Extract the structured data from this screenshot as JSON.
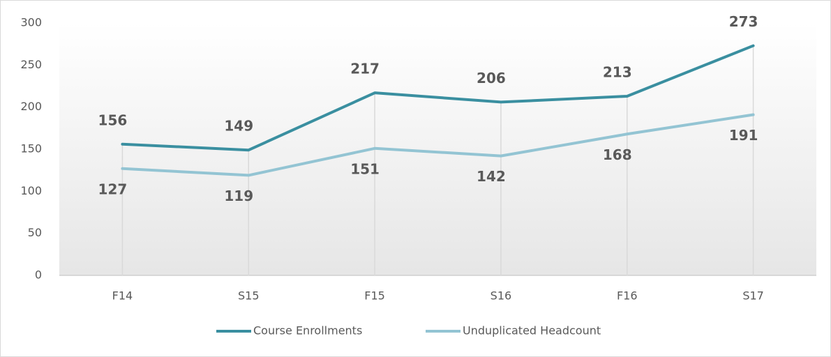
{
  "chart_data": {
    "type": "line",
    "categories": [
      "F14",
      "S15",
      "F15",
      "S16",
      "F16",
      "S17"
    ],
    "series": [
      {
        "name": "Course Enrollments",
        "color": "#3a8fa0",
        "values": [
          156,
          149,
          217,
          206,
          213,
          273
        ]
      },
      {
        "name": "Unduplicated Headcount",
        "color": "#93c4d3",
        "values": [
          127,
          119,
          151,
          142,
          168,
          191
        ]
      }
    ],
    "ylim": [
      0,
      300
    ],
    "yticks": [
      0,
      50,
      100,
      150,
      200,
      250,
      300
    ],
    "drop_lines": true,
    "legend": "bottom"
  }
}
